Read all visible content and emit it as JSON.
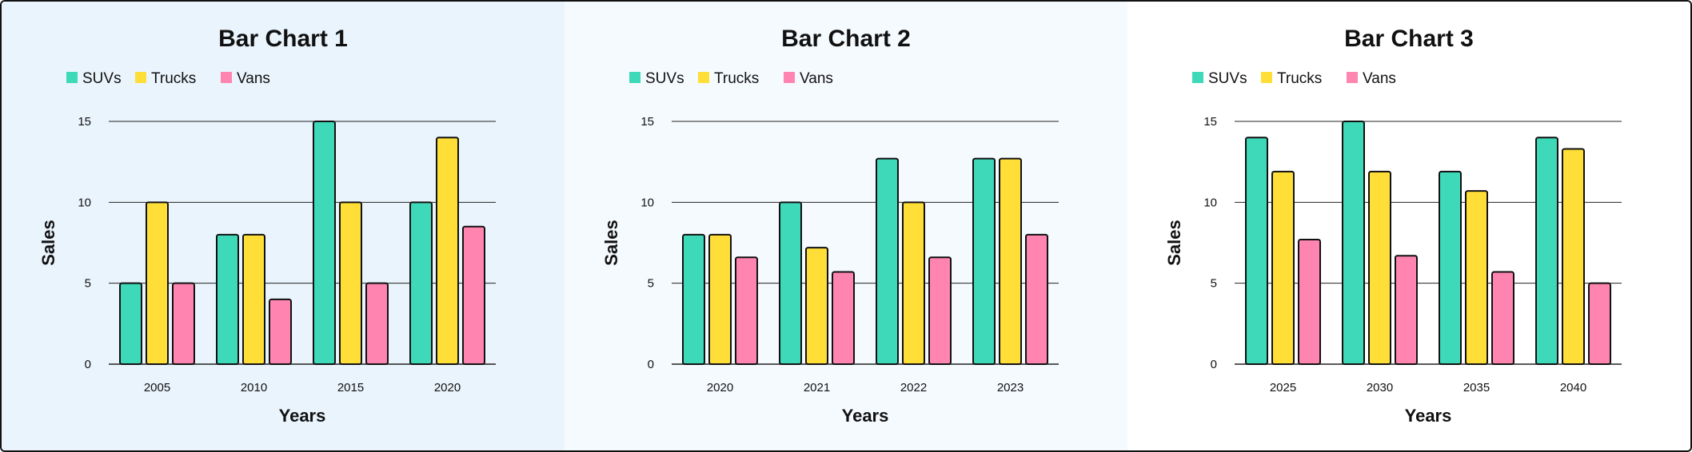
{
  "colors": {
    "SUVs": "#3dd9b8",
    "Trucks": "#ffde38",
    "Vans": "#ff85b0",
    "panel_backgrounds": [
      "#eaf4fd",
      "#f5faff",
      "#ffffff"
    ],
    "grid": "#222222"
  },
  "chart_data": [
    {
      "type": "bar",
      "title": "Bar Chart 1",
      "xlabel": "Years",
      "ylabel": "Sales",
      "categories": [
        "2005",
        "2010",
        "2015",
        "2020"
      ],
      "series": [
        {
          "name": "SUVs",
          "values": [
            5,
            8,
            15,
            10
          ]
        },
        {
          "name": "Trucks",
          "values": [
            10,
            8,
            10,
            14
          ]
        },
        {
          "name": "Vans",
          "values": [
            5,
            4,
            5,
            8.5
          ]
        }
      ],
      "ylim": [
        0,
        15
      ],
      "yticks": [
        0,
        5,
        10,
        15
      ],
      "grid": true,
      "legend": "top-left"
    },
    {
      "type": "bar",
      "title": "Bar Chart 2",
      "xlabel": "Years",
      "ylabel": "Sales",
      "categories": [
        "2020",
        "2021",
        "2022",
        "2023"
      ],
      "series": [
        {
          "name": "SUVs",
          "values": [
            8,
            10,
            12.7,
            12.7
          ]
        },
        {
          "name": "Trucks",
          "values": [
            8,
            7.2,
            10,
            12.7
          ]
        },
        {
          "name": "Vans",
          "values": [
            6.6,
            5.7,
            6.6,
            8
          ]
        }
      ],
      "ylim": [
        0,
        15
      ],
      "yticks": [
        0,
        5,
        10,
        15
      ],
      "grid": true,
      "legend": "top-left"
    },
    {
      "type": "bar",
      "title": "Bar Chart 3",
      "xlabel": "Years",
      "ylabel": "Sales",
      "categories": [
        "2025",
        "2030",
        "2035",
        "2040"
      ],
      "series": [
        {
          "name": "SUVs",
          "values": [
            14,
            15,
            11.9,
            14
          ]
        },
        {
          "name": "Trucks",
          "values": [
            11.9,
            11.9,
            10.7,
            13.3
          ]
        },
        {
          "name": "Vans",
          "values": [
            7.7,
            6.7,
            5.7,
            5
          ]
        }
      ],
      "ylim": [
        0,
        15
      ],
      "yticks": [
        0,
        5,
        10,
        15
      ],
      "grid": true,
      "legend": "top-left"
    }
  ]
}
